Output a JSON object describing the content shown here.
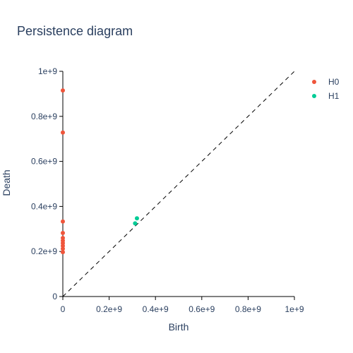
{
  "chart_data": {
    "type": "scatter",
    "title": "Persistence diagram",
    "xlabel": "Birth",
    "ylabel": "Death",
    "xlim": [
      0,
      1000000000
    ],
    "ylim": [
      0,
      1000000000
    ],
    "x_ticks": [
      0,
      200000000,
      400000000,
      600000000,
      800000000,
      1000000000
    ],
    "x_tick_labels": [
      "0",
      "0.2e+9",
      "0.4e+9",
      "0.6e+9",
      "0.8e+9",
      "1e+9"
    ],
    "y_ticks": [
      0,
      200000000,
      400000000,
      600000000,
      800000000,
      1000000000
    ],
    "y_tick_labels": [
      "0",
      "0.2e+9",
      "0.4e+9",
      "0.6e+9",
      "0.8e+9",
      "1e+9"
    ],
    "grid": false,
    "legend_position": "top-right",
    "diagonal_reference_line": true,
    "series": [
      {
        "name": "H0",
        "color": "#EF553B",
        "points": [
          {
            "x": 0,
            "y": 915000000
          },
          {
            "x": 0,
            "y": 728000000
          },
          {
            "x": 0,
            "y": 333000000
          },
          {
            "x": 0,
            "y": 282000000
          },
          {
            "x": 0,
            "y": 260000000
          },
          {
            "x": 0,
            "y": 248000000
          },
          {
            "x": 0,
            "y": 237000000
          },
          {
            "x": 0,
            "y": 225000000
          },
          {
            "x": 0,
            "y": 212000000
          },
          {
            "x": 0,
            "y": 197000000
          }
        ]
      },
      {
        "name": "H1",
        "color": "#00CC96",
        "points": [
          {
            "x": 320000000,
            "y": 347000000
          },
          {
            "x": 312000000,
            "y": 325000000
          }
        ]
      }
    ]
  }
}
